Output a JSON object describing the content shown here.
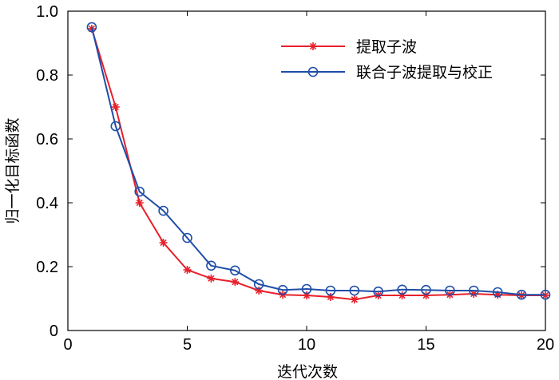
{
  "chart_data": {
    "type": "line",
    "title": "",
    "xlabel": "迭代次数",
    "ylabel": "归一化目标函数",
    "xlim": [
      0,
      20
    ],
    "ylim": [
      0,
      1.0
    ],
    "xticks": [
      0,
      5,
      10,
      15,
      20
    ],
    "yticks": [
      "0",
      "0.2",
      "0.4",
      "0.6",
      "0.8",
      "1.0"
    ],
    "grid": false,
    "legend_position": "top-right",
    "series": [
      {
        "name": "提取子波",
        "color": "#e8202a",
        "marker": "asterisk",
        "x": [
          1,
          2,
          3,
          4,
          5,
          6,
          7,
          8,
          9,
          10,
          11,
          12,
          13,
          14,
          15,
          16,
          17,
          18,
          19,
          20
        ],
        "values": [
          0.945,
          0.7,
          0.4,
          0.275,
          0.19,
          0.163,
          0.152,
          0.125,
          0.112,
          0.11,
          0.105,
          0.097,
          0.11,
          0.11,
          0.11,
          0.112,
          0.115,
          0.112,
          0.11,
          0.11
        ]
      },
      {
        "name": "联合子波提取与校正",
        "color": "#1f4da8",
        "marker": "circle",
        "x": [
          1,
          2,
          3,
          4,
          5,
          6,
          7,
          8,
          9,
          10,
          11,
          12,
          13,
          14,
          15,
          16,
          17,
          18,
          19,
          20
        ],
        "values": [
          0.95,
          0.64,
          0.435,
          0.375,
          0.29,
          0.203,
          0.188,
          0.145,
          0.127,
          0.13,
          0.125,
          0.125,
          0.122,
          0.128,
          0.127,
          0.125,
          0.125,
          0.12,
          0.112,
          0.112
        ]
      }
    ]
  }
}
